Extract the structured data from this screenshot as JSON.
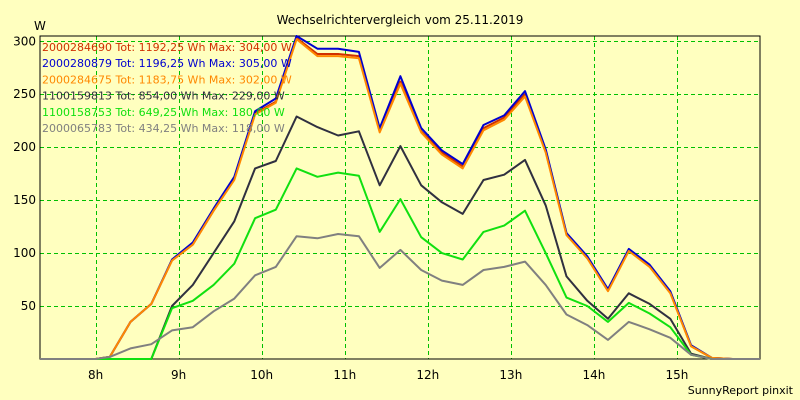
{
  "chart_data": {
    "type": "line",
    "title": "Wechselrichtervergleich vom 25.11.2019",
    "ylabel": "W",
    "xlabel": "",
    "footer": "SunnyReport pinxit",
    "grid": true,
    "legend_position": "top-left",
    "xlim": [
      7.33,
      16.0
    ],
    "ylim": [
      0,
      305
    ],
    "x_ticks": [
      8,
      9,
      10,
      11,
      12,
      13,
      14,
      15
    ],
    "x_tick_labels": [
      "8h",
      "9h",
      "10h",
      "11h",
      "12h",
      "13h",
      "14h",
      "15h"
    ],
    "y_ticks": [
      50,
      100,
      150,
      200,
      250,
      300
    ],
    "y_tick_labels": [
      "50",
      "100",
      "150",
      "200",
      "250",
      "300"
    ],
    "x": [
      7.33,
      7.75,
      8.0,
      8.17,
      8.42,
      8.67,
      8.92,
      9.17,
      9.42,
      9.67,
      9.92,
      10.17,
      10.42,
      10.67,
      10.92,
      11.17,
      11.42,
      11.67,
      11.92,
      12.17,
      12.42,
      12.67,
      12.92,
      13.17,
      13.42,
      13.67,
      13.92,
      14.17,
      14.42,
      14.67,
      14.92,
      15.17,
      15.42,
      15.67,
      16.0
    ],
    "series": [
      {
        "name": "2000284690",
        "legend_text": "2000284690 Tot: 1192,25 Wh Max: 304,00 W",
        "color": "#D03000",
        "values": [
          0,
          0,
          0,
          2,
          35,
          52,
          93,
          108,
          140,
          170,
          232,
          243,
          303,
          288,
          288,
          286,
          215,
          262,
          215,
          195,
          182,
          218,
          228,
          250,
          196,
          118,
          96,
          65,
          103,
          88,
          63,
          12,
          1,
          0,
          0
        ]
      },
      {
        "name": "2000280879",
        "legend_text": "2000280879 Tot: 1196,25 Wh Max: 305,00 W",
        "color": "#0000D0",
        "values": [
          0,
          0,
          0,
          2,
          35,
          52,
          94,
          110,
          142,
          172,
          234,
          246,
          305,
          293,
          293,
          290,
          218,
          267,
          218,
          197,
          184,
          221,
          230,
          253,
          198,
          119,
          97,
          66,
          104,
          89,
          64,
          13,
          1,
          0,
          0
        ]
      },
      {
        "name": "2000284675",
        "legend_text": "2000284675 Tot: 1183,75 Wh Max: 302,00 W",
        "color": "#FF8800",
        "values": [
          0,
          0,
          0,
          2,
          35,
          52,
          93,
          108,
          140,
          169,
          231,
          242,
          302,
          286,
          286,
          284,
          214,
          260,
          214,
          193,
          180,
          216,
          226,
          248,
          195,
          117,
          95,
          64,
          102,
          87,
          62,
          12,
          1,
          0,
          0
        ]
      },
      {
        "name": "1100159813",
        "legend_text": "1100159813 Tot: 854,00 Wh Max: 229,00 W",
        "color": "#303040",
        "values": [
          0,
          0,
          0,
          0,
          0,
          0,
          50,
          70,
          100,
          130,
          180,
          187,
          229,
          219,
          211,
          215,
          164,
          201,
          164,
          148,
          137,
          169,
          174,
          188,
          145,
          78,
          55,
          38,
          62,
          52,
          38,
          5,
          0,
          0,
          0
        ]
      },
      {
        "name": "1100158753",
        "legend_text": "1100158753 Tot: 649,25 Wh Max: 180,00 W",
        "color": "#10E010",
        "values": [
          0,
          0,
          0,
          0,
          0,
          0,
          48,
          55,
          70,
          90,
          133,
          141,
          180,
          172,
          176,
          173,
          120,
          151,
          115,
          100,
          94,
          120,
          126,
          140,
          100,
          58,
          50,
          35,
          53,
          43,
          30,
          4,
          0,
          0,
          0
        ]
      },
      {
        "name": "2000065783",
        "legend_text": "2000065783 Tot: 434,25 Wh Max: 118,00 W",
        "color": "#808080",
        "values": [
          0,
          0,
          0,
          2,
          10,
          14,
          27,
          30,
          45,
          57,
          79,
          87,
          116,
          114,
          118,
          116,
          86,
          103,
          84,
          74,
          70,
          84,
          87,
          92,
          70,
          42,
          32,
          18,
          35,
          28,
          20,
          4,
          0,
          0,
          0
        ]
      }
    ]
  }
}
